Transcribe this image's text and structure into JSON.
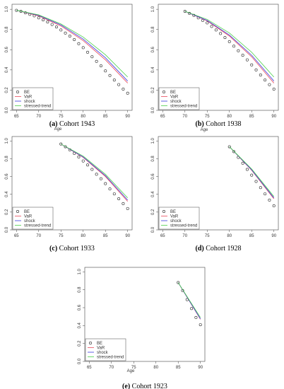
{
  "figure": {
    "series_styles": {
      "BE": {
        "color": "#222222",
        "kind": "circles"
      },
      "VaR": {
        "color": "#e8485a",
        "kind": "line"
      },
      "shock": {
        "color": "#3a3ae0",
        "kind": "line"
      },
      "stressed-trend": {
        "color": "#4ad04a",
        "kind": "line"
      }
    },
    "legend_labels": [
      "BE",
      "VaR",
      "shock",
      "stressed-trend"
    ]
  },
  "chart_data": [
    {
      "type": "line",
      "panel_letter": "(a)",
      "caption": "Cohort 1943",
      "xlabel": "Age",
      "ylabel": "",
      "xlim": [
        64,
        91
      ],
      "ylim": [
        0,
        1.05
      ],
      "xticks": [
        "65",
        "70",
        "75",
        "80",
        "85",
        "90"
      ],
      "yticks": [
        "0.0",
        "0.2",
        "0.4",
        "0.6",
        "0.8",
        "1.0"
      ],
      "grid": false,
      "legend_position": "bottom-left",
      "series": [
        {
          "name": "BE",
          "x": [
            65,
            66,
            67,
            68,
            69,
            70,
            71,
            72,
            73,
            74,
            75,
            76,
            77,
            78,
            79,
            80,
            81,
            82,
            83,
            84,
            85,
            86,
            87,
            88,
            89,
            90
          ],
          "values": [
            0.99,
            0.98,
            0.965,
            0.95,
            0.935,
            0.915,
            0.895,
            0.875,
            0.85,
            0.825,
            0.795,
            0.765,
            0.735,
            0.7,
            0.66,
            0.62,
            0.575,
            0.53,
            0.485,
            0.44,
            0.39,
            0.345,
            0.3,
            0.255,
            0.21,
            0.17
          ]
        },
        {
          "name": "VaR",
          "x": [
            65,
            70,
            75,
            80,
            85,
            90
          ],
          "values": [
            0.99,
            0.935,
            0.835,
            0.69,
            0.5,
            0.27
          ]
        },
        {
          "name": "shock",
          "x": [
            65,
            70,
            75,
            80,
            85,
            90
          ],
          "values": [
            0.99,
            0.94,
            0.845,
            0.705,
            0.52,
            0.29
          ]
        },
        {
          "name": "stressed-trend",
          "x": [
            65,
            70,
            75,
            80,
            85,
            90
          ],
          "values": [
            0.99,
            0.945,
            0.855,
            0.725,
            0.55,
            0.33
          ]
        }
      ]
    },
    {
      "type": "line",
      "panel_letter": "(b)",
      "caption": "Cohort 1938",
      "xlabel": "",
      "ylabel": "",
      "xlim": [
        64,
        91
      ],
      "ylim": [
        0,
        1.05
      ],
      "xticks": [
        "65",
        "70",
        "75",
        "80",
        "85",
        "90"
      ],
      "yticks": [
        "0.0",
        "0.2",
        "0.4",
        "0.6",
        "0.8",
        "1.0"
      ],
      "grid": false,
      "legend_position": "bottom-left",
      "series": [
        {
          "name": "BE",
          "x": [
            70,
            71,
            72,
            73,
            74,
            75,
            76,
            77,
            78,
            79,
            80,
            81,
            82,
            83,
            84,
            85,
            86,
            87,
            88,
            89,
            90
          ],
          "values": [
            0.98,
            0.96,
            0.94,
            0.915,
            0.89,
            0.865,
            0.83,
            0.795,
            0.76,
            0.72,
            0.68,
            0.635,
            0.59,
            0.545,
            0.5,
            0.45,
            0.4,
            0.35,
            0.3,
            0.255,
            0.21
          ]
        },
        {
          "name": "VaR",
          "x": [
            70,
            75,
            80,
            85,
            90
          ],
          "values": [
            0.98,
            0.885,
            0.735,
            0.53,
            0.27
          ]
        },
        {
          "name": "shock",
          "x": [
            70,
            75,
            80,
            85,
            90
          ],
          "values": [
            0.98,
            0.89,
            0.745,
            0.545,
            0.29
          ]
        },
        {
          "name": "stressed-trend",
          "x": [
            70,
            75,
            80,
            85,
            90
          ],
          "values": [
            0.98,
            0.9,
            0.765,
            0.575,
            0.33
          ]
        }
      ]
    },
    {
      "type": "line",
      "panel_letter": "(c)",
      "caption": "Cohort 1933",
      "xlabel": "",
      "ylabel": "",
      "xlim": [
        64,
        91
      ],
      "ylim": [
        0,
        1.05
      ],
      "xticks": [
        "65",
        "70",
        "75",
        "80",
        "85",
        "90"
      ],
      "yticks": [
        "0.0",
        "0.2",
        "0.4",
        "0.6",
        "0.8",
        "1.0"
      ],
      "grid": false,
      "legend_position": "bottom-left",
      "series": [
        {
          "name": "BE",
          "x": [
            75,
            76,
            77,
            78,
            79,
            80,
            81,
            82,
            83,
            84,
            85,
            86,
            87,
            88,
            89,
            90
          ],
          "values": [
            0.965,
            0.935,
            0.9,
            0.86,
            0.82,
            0.775,
            0.73,
            0.68,
            0.625,
            0.575,
            0.52,
            0.46,
            0.405,
            0.35,
            0.295,
            0.24
          ]
        },
        {
          "name": "VaR",
          "x": [
            75,
            80,
            85,
            90
          ],
          "values": [
            0.965,
            0.815,
            0.6,
            0.32
          ]
        },
        {
          "name": "shock",
          "x": [
            75,
            80,
            85,
            90
          ],
          "values": [
            0.965,
            0.82,
            0.61,
            0.335
          ]
        },
        {
          "name": "stressed-trend",
          "x": [
            75,
            80,
            85,
            90
          ],
          "values": [
            0.965,
            0.83,
            0.625,
            0.36
          ]
        }
      ]
    },
    {
      "type": "line",
      "panel_letter": "(d)",
      "caption": "Cohort 1928",
      "xlabel": "",
      "ylabel": "",
      "xlim": [
        64,
        91
      ],
      "ylim": [
        0,
        1.05
      ],
      "xticks": [
        "65",
        "70",
        "75",
        "80",
        "85",
        "90"
      ],
      "yticks": [
        "0.0",
        "0.2",
        "0.4",
        "0.6",
        "0.8",
        "1.0"
      ],
      "grid": false,
      "legend_position": "bottom-left",
      "series": [
        {
          "name": "BE",
          "x": [
            80,
            81,
            82,
            83,
            84,
            85,
            86,
            87,
            88,
            89,
            90
          ],
          "values": [
            0.935,
            0.88,
            0.815,
            0.75,
            0.68,
            0.615,
            0.545,
            0.475,
            0.405,
            0.335,
            0.27
          ]
        },
        {
          "name": "VaR",
          "x": [
            80,
            85,
            90
          ],
          "values": [
            0.935,
            0.67,
            0.35
          ]
        },
        {
          "name": "shock",
          "x": [
            80,
            85,
            90
          ],
          "values": [
            0.935,
            0.675,
            0.36
          ]
        },
        {
          "name": "stressed-trend",
          "x": [
            80,
            85,
            90
          ],
          "values": [
            0.935,
            0.685,
            0.375
          ]
        }
      ]
    },
    {
      "type": "line",
      "panel_letter": "(e)",
      "caption": "Cohort 1923",
      "xlabel": "Age",
      "ylabel": "",
      "xlim": [
        64,
        91
      ],
      "ylim": [
        0,
        1.05
      ],
      "xticks": [
        "65",
        "70",
        "75",
        "80",
        "85",
        "90"
      ],
      "yticks": [
        "0.0",
        "0.2",
        "0.4",
        "0.6",
        "0.8",
        "1.0"
      ],
      "grid": false,
      "legend_position": "bottom-left",
      "series": [
        {
          "name": "BE",
          "x": [
            85,
            86,
            87,
            88,
            89,
            90
          ],
          "values": [
            0.88,
            0.79,
            0.69,
            0.59,
            0.49,
            0.41
          ]
        },
        {
          "name": "VaR",
          "x": [
            85,
            90
          ],
          "values": [
            0.88,
            0.47
          ]
        },
        {
          "name": "shock",
          "x": [
            85,
            90
          ],
          "values": [
            0.88,
            0.475
          ]
        },
        {
          "name": "stressed-trend",
          "x": [
            85,
            90
          ],
          "values": [
            0.88,
            0.49
          ]
        }
      ]
    }
  ]
}
